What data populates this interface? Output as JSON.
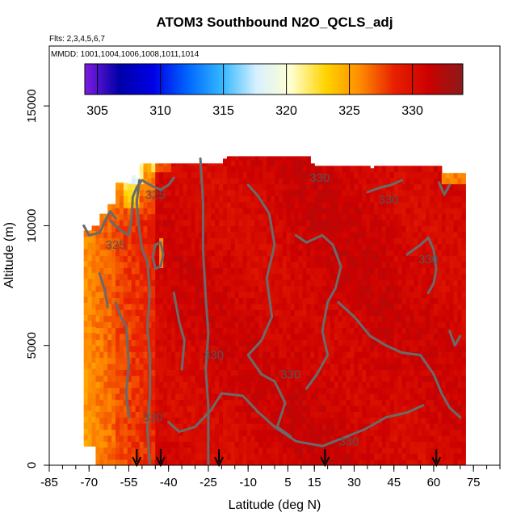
{
  "chart_data": {
    "type": "heatmap",
    "title": "ATOM3 Southbound N2O_QCLS_adj",
    "flights_label": "Flts: 2,3,4,5,6,7",
    "dates_label": "MMDD: 1001,1004,1006,1008,1011,1014",
    "xlabel": "Latitude (deg N)",
    "ylabel": "Altitude (m)",
    "xlim": [
      -85,
      85
    ],
    "ylim": [
      0,
      17500
    ],
    "x_ticks": [
      -85,
      -70,
      -55,
      -40,
      -25,
      -10,
      5,
      15,
      30,
      45,
      60,
      75
    ],
    "y_ticks": [
      0,
      5000,
      10000,
      15000
    ],
    "colorbar": {
      "range": [
        304,
        334
      ],
      "ticks": [
        305,
        310,
        315,
        320,
        325,
        330
      ],
      "colors": [
        "#7e1ce0",
        "#0000a8",
        "#0000e6",
        "#0066ff",
        "#33b8ff",
        "#d8f0ff",
        "#ffffd0",
        "#ffd500",
        "#ff8c00",
        "#e82000",
        "#cc0000",
        "#8b1a1a"
      ]
    },
    "contours": [
      {
        "level": 325,
        "labels": [
          {
            "x": -45,
            "y": 11300
          },
          {
            "x": -60,
            "y": 9200
          }
        ]
      },
      {
        "level": 330,
        "labels": [
          {
            "x": 17,
            "y": 12000
          },
          {
            "x": 43,
            "y": 11100
          },
          {
            "x": -23,
            "y": 4600
          },
          {
            "x": 6,
            "y": 3800
          },
          {
            "x": -46,
            "y": 2000
          },
          {
            "x": 28,
            "y": 1000
          },
          {
            "x": 58,
            "y": 8600
          }
        ]
      }
    ],
    "arrows_x": [
      -52,
      -43,
      -21,
      19,
      61
    ]
  }
}
